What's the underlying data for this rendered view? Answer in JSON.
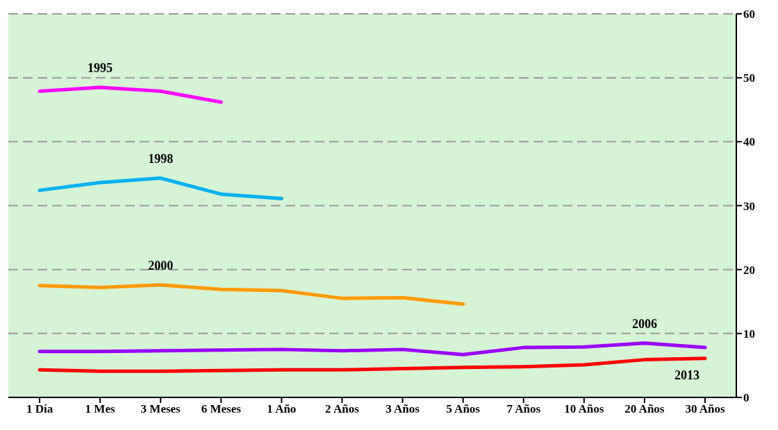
{
  "chart_data": {
    "type": "line",
    "categories": [
      "1 Día",
      "1 Mes",
      "3 Meses",
      "6 Meses",
      "1 Año",
      "2 Años",
      "3 Años",
      "5 Años",
      "7 Años",
      "10 Años",
      "20 Años",
      "30 Años"
    ],
    "ylim": [
      0,
      60
    ],
    "yticks": [
      0,
      10,
      20,
      30,
      40,
      50,
      60
    ],
    "grid": "y",
    "legend": false,
    "series": [
      {
        "name": "1995",
        "color": "#ff00ff",
        "values": [
          47.9,
          48.5,
          47.9,
          46.2,
          null,
          null,
          null,
          null,
          null,
          null,
          null,
          null
        ]
      },
      {
        "name": "1998",
        "color": "#00b0f0",
        "values": [
          32.4,
          33.6,
          34.3,
          31.8,
          31.1,
          null,
          null,
          null,
          null,
          null,
          null,
          null
        ]
      },
      {
        "name": "2000",
        "color": "#ff9900",
        "values": [
          17.5,
          17.2,
          17.6,
          16.9,
          16.7,
          15.5,
          15.6,
          14.6,
          null,
          null,
          null,
          null
        ]
      },
      {
        "name": "2006",
        "color": "#9900ff",
        "values": [
          7.2,
          7.2,
          7.3,
          7.4,
          7.5,
          7.3,
          7.5,
          6.7,
          7.8,
          7.9,
          8.5,
          7.8
        ]
      },
      {
        "name": "2013",
        "color": "#ff0000",
        "values": [
          4.3,
          4.1,
          4.1,
          4.2,
          4.3,
          4.3,
          4.5,
          4.7,
          4.8,
          5.1,
          5.9,
          6.1
        ]
      }
    ]
  }
}
